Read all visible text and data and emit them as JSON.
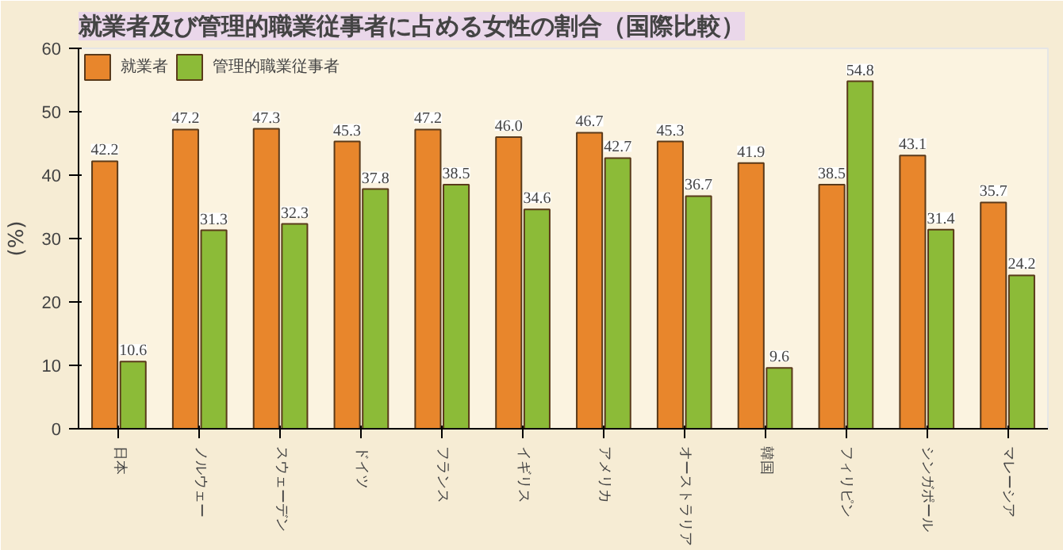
{
  "chart_data": {
    "type": "bar",
    "title": "就業者及び管理的職業従事者に占める女性の割合（国際比較）",
    "ylabel": "(%)",
    "categories": [
      "日本",
      "ノルウェー",
      "スウェーデン",
      "ドイツ",
      "フランス",
      "イギリス",
      "アメリカ",
      "オーストラリア",
      "韓国",
      "フィリピン",
      "シンガポール",
      "マレーシア"
    ],
    "series": [
      {
        "name": "就業者",
        "color": "#e8862c",
        "values": [
          42.2,
          47.2,
          47.3,
          45.3,
          47.2,
          46.0,
          46.7,
          45.3,
          41.9,
          38.5,
          43.1,
          35.7
        ],
        "value_labels": [
          "42.2",
          "47.2",
          "47.3",
          "45.3",
          "47.2",
          "46.0",
          "46.7",
          "45.3",
          "41.9",
          "38.5",
          "43.1",
          "35.7"
        ]
      },
      {
        "name": "管理的職業従事者",
        "color": "#8cbb38",
        "values": [
          10.6,
          31.3,
          32.3,
          37.8,
          38.5,
          34.6,
          42.7,
          36.7,
          9.6,
          54.8,
          31.4,
          24.2
        ]
      }
    ],
    "ylim": [
      0,
      60
    ],
    "yticks": [
      0,
      10,
      20,
      30,
      40,
      50,
      60
    ],
    "grid": false,
    "legend": "top left",
    "data_labels": true
  }
}
